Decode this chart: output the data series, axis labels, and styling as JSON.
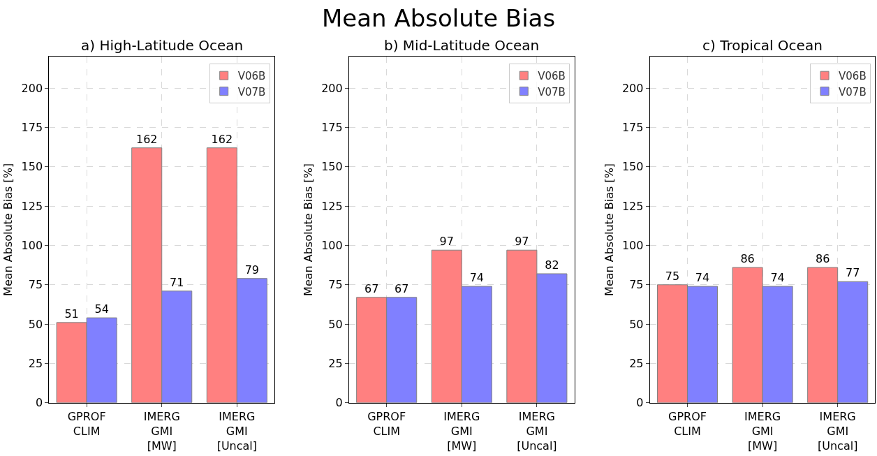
{
  "chart_data": [
    {
      "type": "bar",
      "title": "a) High-Latitude Ocean",
      "ylabel": "Mean Absolute Bias [%]",
      "annotations": [
        "Mean Absolute Bias"
      ],
      "categories": [
        "GPROF\nCLIM",
        "IMERG\nGMI\n[MW]",
        "IMERG\nGMI\n[Uncal]"
      ],
      "series": [
        {
          "name": "V06B",
          "color": "#ff8080",
          "values": [
            51,
            162,
            162
          ]
        },
        {
          "name": "V07B",
          "color": "#8080ff",
          "values": [
            54,
            71,
            79
          ]
        }
      ],
      "ylim": [
        0,
        220
      ],
      "yticks": [
        0,
        25,
        50,
        75,
        100,
        125,
        150,
        175,
        200
      ],
      "grid": true,
      "legend": "top right",
      "data_labels": true
    },
    {
      "type": "bar",
      "title": "b) Mid-Latitude Ocean",
      "ylabel": "Mean Absolute Bias [%]",
      "categories": [
        "GPROF\nCLIM",
        "IMERG\nGMI\n[MW]",
        "IMERG\nGMI\n[Uncal]"
      ],
      "series": [
        {
          "name": "V06B",
          "color": "#ff8080",
          "values": [
            67,
            97,
            97
          ]
        },
        {
          "name": "V07B",
          "color": "#8080ff",
          "values": [
            67,
            74,
            82
          ]
        }
      ],
      "ylim": [
        0,
        220
      ],
      "yticks": [
        0,
        25,
        50,
        75,
        100,
        125,
        150,
        175,
        200
      ],
      "grid": true,
      "legend": "top right",
      "data_labels": true
    },
    {
      "type": "bar",
      "title": "c) Tropical Ocean",
      "ylabel": "Mean Absolute Bias [%]",
      "categories": [
        "GPROF\nCLIM",
        "IMERG\nGMI\n[MW]",
        "IMERG\nGMI\n[Uncal]"
      ],
      "series": [
        {
          "name": "V06B",
          "color": "#ff8080",
          "values": [
            75,
            86,
            86
          ]
        },
        {
          "name": "V07B",
          "color": "#8080ff",
          "values": [
            74,
            74,
            77
          ]
        }
      ],
      "ylim": [
        0,
        220
      ],
      "yticks": [
        0,
        25,
        50,
        75,
        100,
        125,
        150,
        175,
        200
      ],
      "grid": true,
      "legend": "top right",
      "data_labels": true
    }
  ]
}
